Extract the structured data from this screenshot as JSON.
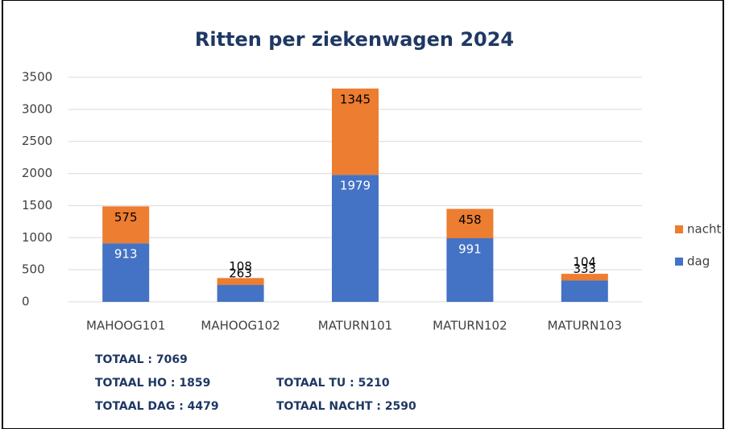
{
  "chart_data": {
    "type": "stacked_bar",
    "title": "Ritten per ziekenwagen 2024",
    "categories": [
      "MAHOOG101",
      "MAHOOG102",
      "MATURN101",
      "MATURN102",
      "MATURN103"
    ],
    "series": [
      {
        "name": "dag",
        "color": "#4472c4",
        "values": [
          913,
          263,
          1979,
          991,
          333
        ]
      },
      {
        "name": "nacht",
        "color": "#ed7d31",
        "values": [
          575,
          108,
          1345,
          458,
          104
        ]
      }
    ],
    "ylim": [
      0,
      3500
    ],
    "yticks": [
      0,
      500,
      1000,
      1500,
      2000,
      2500,
      3000,
      3500
    ],
    "grid": true,
    "legend": "right",
    "annotations": [
      "TOTAAL : 7069",
      "TOTAAL HO : 1859",
      "TOTAAL TU : 5210",
      "TOTAAL DAG : 4479",
      "TOTAAL NACHT : 2590"
    ]
  }
}
